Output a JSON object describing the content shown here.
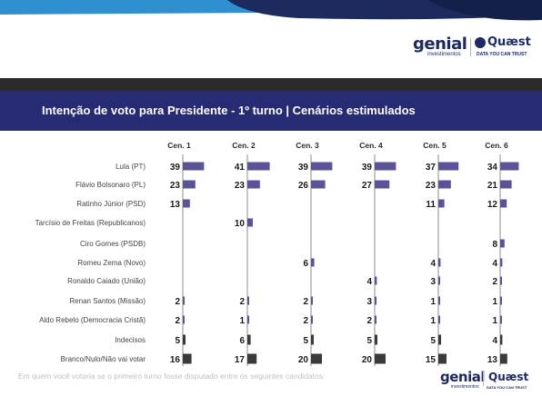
{
  "title": "Intenção de voto para Presidente - 1º turno | Cenários estimulados",
  "footnote": "Em quem você votaria se o primeiro turno fosse disputado entre os seguintes candidatos:",
  "logos": {
    "genial": "genial",
    "genial_sub": "investimentos",
    "quaest": "Quæst",
    "quaest_sub": "DATA YOU CAN TRUST"
  },
  "colors": {
    "title_bar": "#262b73",
    "bar_main": "#5b5397",
    "bar_dark": "#3a3a3a",
    "top_blue": "#2f8fcf",
    "top_navy": "#1c2a5e"
  },
  "chart_data": {
    "type": "bar",
    "orientation": "horizontal",
    "categories": [
      "Cen. 1",
      "Cen. 2",
      "Cen. 3",
      "Cen. 4",
      "Cen. 5",
      "Cen. 6"
    ],
    "candidates": [
      "Lula (PT)",
      "Flávio Bolsonaro (PL)",
      "Ratinho Júnior (PSD)",
      "Tarcísio de Freitas (Republicanos)",
      "Ciro Gomes (PSDB)",
      "Romeu Zema (Novo)",
      "Ronaldo Caiado (União)",
      "Renan Santos (Missão)",
      "Aldo Rebelo (Democracia Cristã)",
      "Indecisos",
      "Branco/Nulo/Não vai votar"
    ],
    "values": [
      [
        39,
        41,
        39,
        39,
        37,
        34
      ],
      [
        23,
        23,
        26,
        27,
        23,
        21
      ],
      [
        13,
        null,
        null,
        null,
        11,
        12
      ],
      [
        null,
        10,
        null,
        null,
        null,
        null
      ],
      [
        null,
        null,
        null,
        null,
        null,
        8
      ],
      [
        null,
        null,
        6,
        null,
        4,
        4
      ],
      [
        null,
        null,
        null,
        4,
        3,
        2
      ],
      [
        2,
        2,
        2,
        3,
        1,
        1
      ],
      [
        2,
        1,
        2,
        2,
        1,
        1
      ],
      [
        5,
        6,
        5,
        5,
        5,
        4
      ],
      [
        16,
        17,
        20,
        20,
        15,
        13
      ]
    ],
    "bar_style": [
      "main",
      "main",
      "main",
      "main",
      "main",
      "main",
      "main",
      "main",
      "main",
      "dark",
      "dark"
    ],
    "unit": "%"
  }
}
